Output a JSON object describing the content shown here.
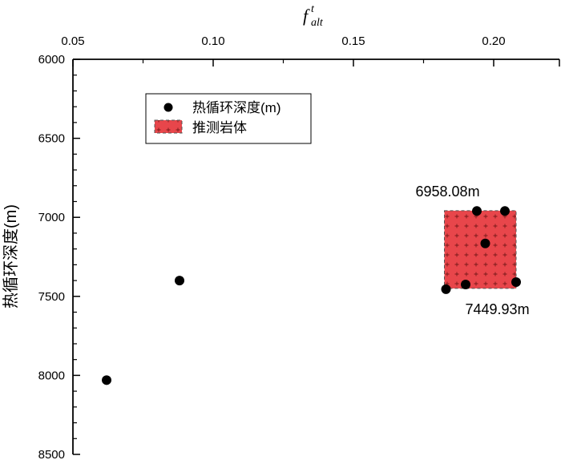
{
  "chart_data": {
    "type": "scatter",
    "title": "",
    "xlabel": {
      "base": "f",
      "superscript": "t",
      "subscript": "alt"
    },
    "ylabel": "热循环深度(m)",
    "x_axis_position": "top",
    "y_axis_inverted": true,
    "xlim": [
      0.05,
      0.23
    ],
    "ylim": [
      6000,
      8500
    ],
    "x_ticks": [
      0.05,
      0.1,
      0.15,
      0.2
    ],
    "x_tick_labels": [
      "0.05",
      "0.10",
      "0.15",
      "0.20"
    ],
    "y_ticks": [
      6000,
      6500,
      7000,
      7500,
      8000,
      8500
    ],
    "y_tick_labels": [
      "6000",
      "6500",
      "7000",
      "7500",
      "8000",
      "8500"
    ],
    "grid": false,
    "legend_position": "top-left",
    "legend": [
      {
        "label": "热循环深度(m)",
        "marker": "circle",
        "color": "#000000"
      },
      {
        "label": "推测岩体",
        "marker": "rect",
        "color": "#E8464B"
      }
    ],
    "series": [
      {
        "name": "热循环深度(m)",
        "points": [
          {
            "x": 0.062,
            "y": 8030
          },
          {
            "x": 0.088,
            "y": 7400
          },
          {
            "x": 0.183,
            "y": 7455
          },
          {
            "x": 0.19,
            "y": 7425
          },
          {
            "x": 0.194,
            "y": 6960
          },
          {
            "x": 0.197,
            "y": 7165
          },
          {
            "x": 0.204,
            "y": 6960
          },
          {
            "x": 0.208,
            "y": 7410
          }
        ]
      }
    ],
    "region": {
      "name": "推测岩体",
      "x_range": [
        0.183,
        0.208
      ],
      "y_range": [
        6958.08,
        7449.93
      ],
      "color": "#E8464B"
    },
    "annotations": [
      {
        "text": "6958.08m",
        "x": 0.183,
        "y": 6958.08,
        "anchor": "upper-left of region"
      },
      {
        "text": "7449.93m",
        "x": 0.208,
        "y": 7449.93,
        "anchor": "lower-right of region"
      }
    ]
  }
}
